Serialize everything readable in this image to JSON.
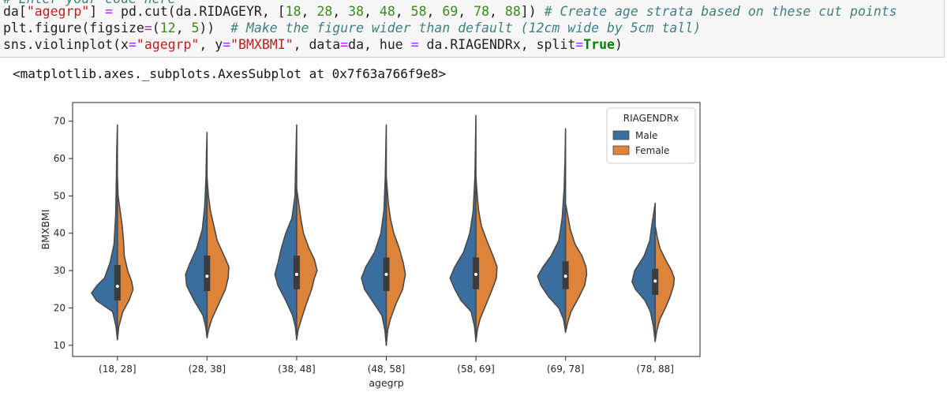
{
  "code": {
    "line0_comment": "# Enter your code here",
    "line1": {
      "p1": "da[",
      "s1": "\"agegrp\"",
      "p2": "] ",
      "o1": "=",
      "p3": " pd.cut(da.RIDAGEYR, [",
      "n1": "18",
      "c1": ", ",
      "n2": "28",
      "c2": ", ",
      "n3": "38",
      "c3": ", ",
      "n4": "48",
      "c4": ", ",
      "n5": "58",
      "c5": ", ",
      "n6": "69",
      "c6": ", ",
      "n7": "78",
      "c7": ", ",
      "n8": "88",
      "p4": "]) ",
      "comment": "# Create age strata based on these cut points"
    },
    "line2": {
      "p1": "plt.figure(figsize",
      "o1": "=",
      "p2": "(",
      "n1": "12",
      "c1": ", ",
      "n2": "5",
      "p3": "))  ",
      "comment": "# Make the figure wider than default (12cm wide by 5cm tall)"
    },
    "line3": {
      "p1": "sns.violinplot(x",
      "o1": "=",
      "s1": "\"agegrp\"",
      "p2": ", y",
      "o2": "=",
      "s2": "\"BMXBMI\"",
      "p3": ", data",
      "o3": "=",
      "p4": "da, hue ",
      "o4": "=",
      "p5": " da.RIAGENDRx, split",
      "o5": "=",
      "kw": "True",
      "p6": ")"
    }
  },
  "output_text": "<matplotlib.axes._subplots.AxesSubplot at 0x7f63a766f9e8>",
  "chart_data": {
    "type": "violin",
    "xlabel": "agegrp",
    "ylabel": "BMXBMI",
    "ylim": [
      7,
      75
    ],
    "yticks": [
      10,
      20,
      30,
      40,
      50,
      60,
      70
    ],
    "categories": [
      "(18, 28]",
      "(28, 38]",
      "(38, 48]",
      "(48, 58]",
      "(58, 69]",
      "(69, 78]",
      "(78, 88]"
    ],
    "legend": {
      "title": "RIAGENDRx",
      "position": "top-right"
    },
    "series": [
      {
        "name": "Male",
        "color": "#3a6e9f"
      },
      {
        "name": "Female",
        "color": "#dd843a"
      }
    ],
    "medians": [
      25.8,
      28.5,
      29.0,
      29.0,
      29.0,
      28.5,
      27.2
    ],
    "quartiles": [
      [
        22.0,
        31.5
      ],
      [
        24.5,
        34.0
      ],
      [
        25.0,
        34.0
      ],
      [
        24.5,
        33.5
      ],
      [
        25.0,
        33.5
      ],
      [
        25.0,
        32.5
      ],
      [
        23.5,
        30.5
      ]
    ],
    "male_shape": [
      [
        [
          11.5,
          0
        ],
        [
          15,
          0.04
        ],
        [
          19,
          0.14
        ],
        [
          22,
          0.62
        ],
        [
          24,
          0.76
        ],
        [
          26,
          0.6
        ],
        [
          28,
          0.38
        ],
        [
          32,
          0.22
        ],
        [
          37,
          0.1
        ],
        [
          45,
          0.05
        ],
        [
          55,
          0.03
        ],
        [
          62,
          0.02
        ],
        [
          69,
          0
        ]
      ],
      [
        [
          12,
          0
        ],
        [
          15,
          0.04
        ],
        [
          18,
          0.12
        ],
        [
          22,
          0.38
        ],
        [
          26,
          0.6
        ],
        [
          29,
          0.63
        ],
        [
          32,
          0.5
        ],
        [
          36,
          0.3
        ],
        [
          41,
          0.14
        ],
        [
          47,
          0.07
        ],
        [
          55,
          0.03
        ],
        [
          62,
          0.015
        ],
        [
          67,
          0
        ]
      ],
      [
        [
          11.5,
          0
        ],
        [
          15,
          0.04
        ],
        [
          18,
          0.12
        ],
        [
          22,
          0.32
        ],
        [
          26,
          0.55
        ],
        [
          29,
          0.64
        ],
        [
          32,
          0.55
        ],
        [
          36,
          0.45
        ],
        [
          40,
          0.32
        ],
        [
          44,
          0.14
        ],
        [
          50,
          0.05
        ],
        [
          58,
          0.03
        ],
        [
          69,
          0
        ]
      ],
      [
        [
          10,
          0
        ],
        [
          14,
          0.04
        ],
        [
          18,
          0.13
        ],
        [
          22,
          0.42
        ],
        [
          25,
          0.64
        ],
        [
          28,
          0.73
        ],
        [
          31,
          0.6
        ],
        [
          35,
          0.34
        ],
        [
          40,
          0.16
        ],
        [
          46,
          0.07
        ],
        [
          55,
          0.03
        ],
        [
          62,
          0.015
        ],
        [
          69,
          0
        ]
      ],
      [
        [
          11,
          0
        ],
        [
          15,
          0.04
        ],
        [
          19,
          0.14
        ],
        [
          22,
          0.44
        ],
        [
          25,
          0.62
        ],
        [
          28,
          0.76
        ],
        [
          31,
          0.62
        ],
        [
          35,
          0.36
        ],
        [
          40,
          0.18
        ],
        [
          46,
          0.08
        ],
        [
          55,
          0.03
        ],
        [
          63,
          0.015
        ],
        [
          71.5,
          0
        ]
      ],
      [
        [
          13.5,
          0
        ],
        [
          17,
          0.06
        ],
        [
          20,
          0.2
        ],
        [
          23,
          0.5
        ],
        [
          26,
          0.72
        ],
        [
          28.5,
          0.82
        ],
        [
          31,
          0.66
        ],
        [
          34,
          0.42
        ],
        [
          38,
          0.2
        ],
        [
          44,
          0.1
        ],
        [
          52,
          0.04
        ],
        [
          60,
          0.015
        ],
        [
          68,
          0
        ]
      ],
      [
        [
          11,
          0
        ],
        [
          15,
          0.05
        ],
        [
          19,
          0.14
        ],
        [
          22,
          0.3
        ],
        [
          25,
          0.58
        ],
        [
          27,
          0.68
        ],
        [
          30,
          0.6
        ],
        [
          34,
          0.32
        ],
        [
          38,
          0.16
        ],
        [
          42,
          0.1
        ],
        [
          45,
          0.05
        ],
        [
          48,
          0
        ]
      ]
    ],
    "female_shape": [
      [
        [
          11.5,
          0
        ],
        [
          15,
          0.04
        ],
        [
          19,
          0.16
        ],
        [
          22,
          0.34
        ],
        [
          25,
          0.46
        ],
        [
          27,
          0.42
        ],
        [
          30,
          0.3
        ],
        [
          34,
          0.2
        ],
        [
          38,
          0.18
        ],
        [
          42,
          0.14
        ],
        [
          46,
          0.08
        ],
        [
          50,
          0.02
        ],
        [
          55,
          0
        ]
      ],
      [
        [
          12,
          0
        ],
        [
          14,
          0.04
        ],
        [
          17,
          0.14
        ],
        [
          21,
          0.34
        ],
        [
          25,
          0.54
        ],
        [
          28,
          0.62
        ],
        [
          31,
          0.64
        ],
        [
          34,
          0.5
        ],
        [
          38,
          0.3
        ],
        [
          42,
          0.2
        ],
        [
          46,
          0.1
        ],
        [
          50,
          0.04
        ],
        [
          55,
          0
        ]
      ],
      [
        [
          11.5,
          0
        ],
        [
          14,
          0.04
        ],
        [
          17,
          0.14
        ],
        [
          21,
          0.28
        ],
        [
          25,
          0.44
        ],
        [
          28,
          0.52
        ],
        [
          30,
          0.6
        ],
        [
          33,
          0.52
        ],
        [
          36,
          0.36
        ],
        [
          40,
          0.2
        ],
        [
          44,
          0.12
        ],
        [
          48,
          0.06
        ],
        [
          52,
          0
        ]
      ],
      [
        [
          10,
          0
        ],
        [
          14,
          0.04
        ],
        [
          17,
          0.12
        ],
        [
          21,
          0.28
        ],
        [
          25,
          0.48
        ],
        [
          29,
          0.56
        ],
        [
          32,
          0.5
        ],
        [
          36,
          0.38
        ],
        [
          40,
          0.22
        ],
        [
          44,
          0.12
        ],
        [
          48,
          0.06
        ],
        [
          55,
          0
        ]
      ],
      [
        [
          11,
          0
        ],
        [
          14,
          0.04
        ],
        [
          17,
          0.12
        ],
        [
          21,
          0.3
        ],
        [
          25,
          0.48
        ],
        [
          28,
          0.6
        ],
        [
          31,
          0.62
        ],
        [
          34,
          0.5
        ],
        [
          38,
          0.32
        ],
        [
          42,
          0.16
        ],
        [
          46,
          0.08
        ],
        [
          50,
          0.04
        ],
        [
          55,
          0
        ]
      ],
      [
        [
          13.5,
          0
        ],
        [
          16,
          0.06
        ],
        [
          19,
          0.16
        ],
        [
          23,
          0.4
        ],
        [
          26,
          0.56
        ],
        [
          29,
          0.62
        ],
        [
          31,
          0.6
        ],
        [
          34,
          0.48
        ],
        [
          37,
          0.28
        ],
        [
          41,
          0.14
        ],
        [
          45,
          0.06
        ],
        [
          48,
          0
        ]
      ],
      [
        [
          11,
          0
        ],
        [
          14,
          0.05
        ],
        [
          17,
          0.14
        ],
        [
          20,
          0.3
        ],
        [
          23,
          0.44
        ],
        [
          26,
          0.54
        ],
        [
          28,
          0.56
        ],
        [
          30,
          0.48
        ],
        [
          33,
          0.3
        ],
        [
          36,
          0.14
        ],
        [
          39,
          0.06
        ],
        [
          42,
          0
        ]
      ]
    ]
  }
}
